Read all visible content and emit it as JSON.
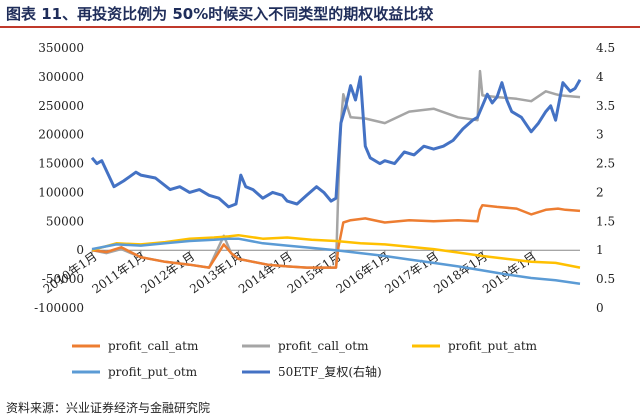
{
  "title": "图表 11、再投资比例为 50%时候买入不同类型的期权收益比较",
  "source": "资料来源：兴业证券经济与金融研究院",
  "chart_data": {
    "type": "line",
    "title": "图表 11、再投资比例为 50%时候买入不同类型的期权收益比较",
    "left_axis": {
      "min": -100000,
      "max": 350000,
      "ticks": [
        -100000,
        -50000,
        0,
        50000,
        100000,
        150000,
        200000,
        250000,
        300000,
        350000
      ],
      "tick_labels": [
        "-100000",
        "-50000",
        "0",
        "50000",
        "100000",
        "150000",
        "200000",
        "250000",
        "300000",
        "350000"
      ]
    },
    "right_axis": {
      "min": 0,
      "max": 4.5,
      "ticks": [
        0,
        0.5,
        1,
        1.5,
        2,
        2.5,
        3,
        3.5,
        4,
        4.5
      ],
      "tick_labels": [
        "0",
        "0.5",
        "1",
        "1.5",
        "2",
        "2.5",
        "3",
        "3.5",
        "4",
        "4.5"
      ]
    },
    "x_axis": {
      "min": 2010.0,
      "max": 2020.0,
      "ticks": [
        2010.0,
        2011.0,
        2012.0,
        2013.0,
        2014.0,
        2015.0,
        2016.0,
        2017.0,
        2018.0,
        2019.0
      ],
      "tick_labels": [
        "2010年1月",
        "2011年1月",
        "2012年1月",
        "2013年1月",
        "2014年1月",
        "2015年1月",
        "2016年1月",
        "2017年1月",
        "2018年1月",
        "2019年1月"
      ]
    },
    "series": [
      {
        "name": "profit_call_atm",
        "color": "#ed7d31",
        "axis": "left",
        "x": [
          2010.0,
          2010.3,
          2010.6,
          2011.0,
          2011.5,
          2012.0,
          2012.4,
          2012.7,
          2012.85,
          2013.0,
          2013.3,
          2013.6,
          2014.0,
          2014.4,
          2014.8,
          2015.0,
          2015.05,
          2015.15,
          2015.3,
          2015.6,
          2016.0,
          2016.5,
          2017.0,
          2017.5,
          2017.9,
          2017.95,
          2018.0,
          2018.3,
          2018.7,
          2019.0,
          2019.3,
          2019.55,
          2019.7,
          2020.0
        ],
        "values": [
          0,
          -3000,
          5000,
          -12000,
          -20000,
          -25000,
          -30000,
          10000,
          -5000,
          -15000,
          -20000,
          -25000,
          -28000,
          -30000,
          -30000,
          -30000,
          5000,
          48000,
          52000,
          55000,
          48000,
          52000,
          50000,
          52000,
          50000,
          70000,
          78000,
          75000,
          72000,
          62000,
          70000,
          72000,
          70000,
          68000
        ]
      },
      {
        "name": "profit_call_otm",
        "color": "#a5a5a5",
        "axis": "left",
        "x": [
          2010.0,
          2010.3,
          2010.6,
          2011.0,
          2011.5,
          2012.0,
          2012.4,
          2012.7,
          2012.85,
          2013.0,
          2013.3,
          2013.6,
          2014.0,
          2014.4,
          2014.8,
          2015.0,
          2015.05,
          2015.1,
          2015.15,
          2015.3,
          2015.6,
          2016.0,
          2016.5,
          2017.0,
          2017.5,
          2017.9,
          2017.95,
          2018.0,
          2018.3,
          2018.7,
          2019.0,
          2019.3,
          2019.5,
          2019.6,
          2020.0
        ],
        "values": [
          0,
          -5000,
          2000,
          -12000,
          -20000,
          -25000,
          -30000,
          25000,
          -5000,
          -15000,
          -20000,
          -25000,
          -28000,
          -30000,
          -30000,
          -30000,
          110000,
          220000,
          270000,
          230000,
          228000,
          220000,
          240000,
          245000,
          230000,
          225000,
          310000,
          268000,
          265000,
          262000,
          258000,
          275000,
          270000,
          268000,
          265000
        ]
      },
      {
        "name": "profit_put_atm",
        "color": "#ffc000",
        "axis": "left",
        "x": [
          2010.0,
          2010.5,
          2011.0,
          2011.5,
          2012.0,
          2012.5,
          2012.8,
          2013.0,
          2013.5,
          2014.0,
          2014.5,
          2015.0,
          2015.5,
          2016.0,
          2016.5,
          2017.0,
          2017.5,
          2018.0,
          2018.5,
          2019.0,
          2019.5,
          2020.0
        ],
        "values": [
          0,
          12000,
          10000,
          14000,
          20000,
          22000,
          24000,
          26000,
          20000,
          22000,
          18000,
          16000,
          12000,
          10000,
          6000,
          2000,
          -4000,
          -10000,
          -15000,
          -20000,
          -22000,
          -30000
        ]
      },
      {
        "name": "profit_put_otm",
        "color": "#5b9bd5",
        "axis": "left",
        "x": [
          2010.0,
          2010.5,
          2011.0,
          2011.5,
          2012.0,
          2012.5,
          2012.8,
          2013.0,
          2013.5,
          2014.0,
          2014.5,
          2015.0,
          2015.5,
          2016.0,
          2016.5,
          2017.0,
          2017.5,
          2018.0,
          2018.5,
          2019.0,
          2019.5,
          2020.0
        ],
        "values": [
          2000,
          10000,
          8000,
          12000,
          16000,
          18000,
          20000,
          20000,
          12000,
          8000,
          4000,
          0,
          -5000,
          -10000,
          -16000,
          -22000,
          -28000,
          -35000,
          -42000,
          -48000,
          -52000,
          -58000
        ]
      },
      {
        "name": "50ETF_复权(右轴)",
        "color": "#4472c4",
        "axis": "right",
        "x": [
          2010.0,
          2010.1,
          2010.2,
          2010.45,
          2010.65,
          2010.9,
          2011.0,
          2011.3,
          2011.6,
          2011.8,
          2012.0,
          2012.2,
          2012.4,
          2012.6,
          2012.8,
          2012.95,
          2013.05,
          2013.15,
          2013.3,
          2013.5,
          2013.7,
          2013.9,
          2014.0,
          2014.2,
          2014.4,
          2014.6,
          2014.75,
          2014.9,
          2015.0,
          2015.1,
          2015.2,
          2015.3,
          2015.4,
          2015.5,
          2015.6,
          2015.7,
          2015.9,
          2016.0,
          2016.2,
          2016.4,
          2016.6,
          2016.8,
          2017.0,
          2017.2,
          2017.4,
          2017.6,
          2017.8,
          2017.9,
          2018.0,
          2018.1,
          2018.2,
          2018.3,
          2018.4,
          2018.5,
          2018.6,
          2018.8,
          2019.0,
          2019.15,
          2019.3,
          2019.4,
          2019.5,
          2019.65,
          2019.8,
          2019.9,
          2020.0
        ],
        "values": [
          2.6,
          2.5,
          2.55,
          2.1,
          2.2,
          2.35,
          2.3,
          2.25,
          2.05,
          2.1,
          2.0,
          2.05,
          1.95,
          1.9,
          1.75,
          1.8,
          2.3,
          2.1,
          2.05,
          1.9,
          2.0,
          1.95,
          1.85,
          1.8,
          1.95,
          2.1,
          2.0,
          1.85,
          1.9,
          3.2,
          3.5,
          3.85,
          3.6,
          4.0,
          2.8,
          2.6,
          2.5,
          2.55,
          2.5,
          2.7,
          2.65,
          2.8,
          2.75,
          2.8,
          2.9,
          3.1,
          3.25,
          3.3,
          3.5,
          3.7,
          3.55,
          3.65,
          3.9,
          3.6,
          3.4,
          3.3,
          3.05,
          3.2,
          3.4,
          3.5,
          3.25,
          3.9,
          3.75,
          3.8,
          3.95
        ]
      }
    ],
    "legend": [
      "profit_call_atm",
      "profit_call_otm",
      "profit_put_atm",
      "profit_put_otm",
      "50ETF_复权(右轴)"
    ],
    "legend_position": "bottom",
    "grid": false
  }
}
